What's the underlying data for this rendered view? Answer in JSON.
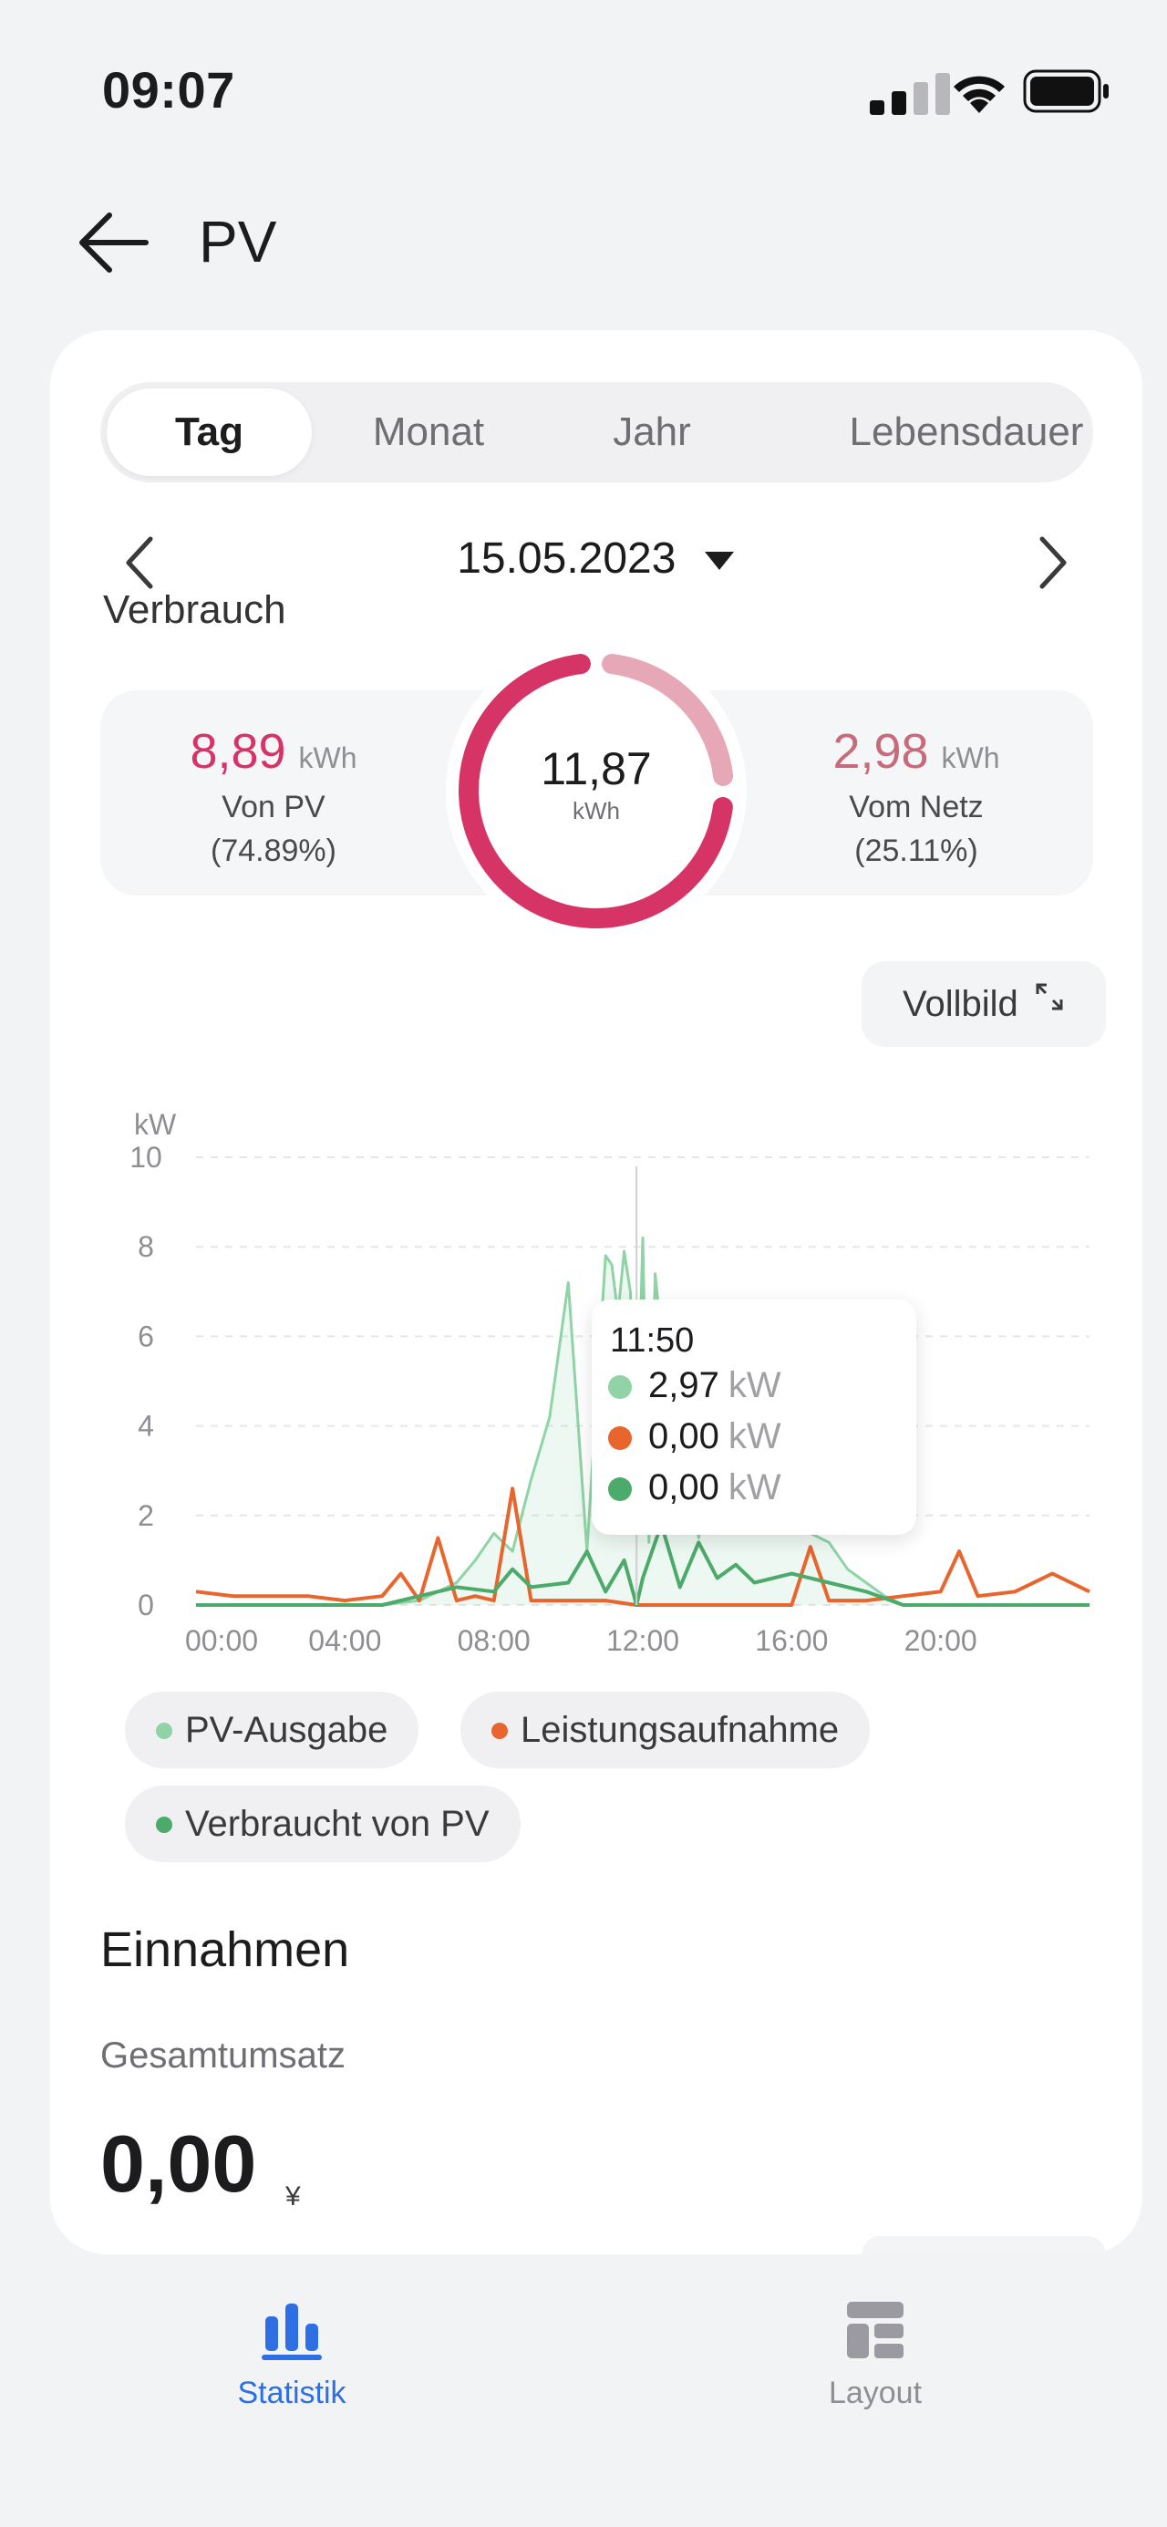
{
  "status_bar": {
    "time": "09:07"
  },
  "header": {
    "title": "PV"
  },
  "tabs": [
    {
      "label": "Tag",
      "active": true
    },
    {
      "label": "Monat",
      "active": false
    },
    {
      "label": "Jahr",
      "active": false
    },
    {
      "label": "Lebensdauer",
      "active": false
    }
  ],
  "date_nav": {
    "date": "15.05.2023"
  },
  "section_partial_label": "Verbrauch",
  "summary": {
    "left": {
      "value": "8,89",
      "unit": "kWh",
      "label": "Von PV",
      "percent": "(74.89%)"
    },
    "center": {
      "value": "11,87",
      "unit": "kWh"
    },
    "right": {
      "value": "2,98",
      "unit": "kWh",
      "label": "Vom Netz",
      "percent": "(25.11%)"
    },
    "pv_fraction": 0.7489,
    "colors": {
      "pv": "#d63366",
      "grid": "#e6a8b6"
    }
  },
  "fullscreen_label": "Vollbild",
  "chart_data": {
    "type": "line",
    "ylabel": "kW",
    "ylim": [
      0,
      10
    ],
    "y_ticks": [
      "0",
      "2",
      "4",
      "6",
      "8",
      "10"
    ],
    "x_ticks": [
      "00:00",
      "04:00",
      "08:00",
      "12:00",
      "16:00",
      "20:00"
    ],
    "series": [
      {
        "name": "PV-Ausgabe",
        "color": "#8fd3a6",
        "x": [
          "00:00",
          "05:00",
          "06:00",
          "07:00",
          "07:30",
          "08:00",
          "08:30",
          "09:00",
          "09:30",
          "10:00",
          "10:30",
          "11:00",
          "11:10",
          "11:20",
          "11:30",
          "11:40",
          "11:50",
          "12:00",
          "12:10",
          "12:20",
          "12:30",
          "12:40",
          "13:00",
          "13:30",
          "14:00",
          "14:30",
          "15:00",
          "15:30",
          "16:00",
          "16:30",
          "17:00",
          "17:30",
          "18:00",
          "18:30",
          "19:00",
          "24:00"
        ],
        "values": [
          0,
          0,
          0.1,
          0.5,
          1.0,
          1.6,
          1.2,
          2.8,
          4.2,
          7.2,
          1.2,
          7.8,
          7.6,
          6.5,
          7.9,
          7.0,
          2.97,
          8.2,
          1.4,
          7.4,
          6.0,
          2.0,
          4.2,
          1.5,
          3.2,
          1.6,
          2.6,
          1.8,
          2.4,
          1.6,
          1.4,
          0.8,
          0.5,
          0.2,
          0,
          0
        ]
      },
      {
        "name": "Leistungsaufnahme",
        "color": "#e8662e",
        "x": [
          "00:00",
          "01:00",
          "02:00",
          "03:00",
          "04:00",
          "05:00",
          "05:30",
          "06:00",
          "06:30",
          "07:00",
          "07:30",
          "08:00",
          "08:30",
          "09:00",
          "09:30",
          "10:00",
          "11:00",
          "11:50",
          "12:00",
          "13:00",
          "14:00",
          "15:00",
          "16:00",
          "16:30",
          "17:00",
          "18:00",
          "19:00",
          "20:00",
          "20:30",
          "21:00",
          "22:00",
          "23:00",
          "24:00"
        ],
        "values": [
          0.3,
          0.2,
          0.2,
          0.2,
          0.1,
          0.2,
          0.7,
          0.1,
          1.5,
          0.1,
          0.2,
          0.1,
          2.6,
          0.1,
          0.1,
          0.1,
          0.1,
          0,
          0,
          0,
          0,
          0,
          0,
          1.3,
          0.1,
          0.1,
          0.2,
          0.3,
          1.2,
          0.2,
          0.3,
          0.7,
          0.3
        ]
      },
      {
        "name": "Verbraucht von PV",
        "color": "#4caa6a",
        "x": [
          "00:00",
          "05:00",
          "06:00",
          "07:00",
          "08:00",
          "08:30",
          "09:00",
          "10:00",
          "10:30",
          "11:00",
          "11:30",
          "11:50",
          "12:00",
          "12:30",
          "13:00",
          "13:30",
          "14:00",
          "14:30",
          "15:00",
          "16:00",
          "17:00",
          "18:00",
          "19:00",
          "24:00"
        ],
        "values": [
          0,
          0,
          0.2,
          0.4,
          0.3,
          0.8,
          0.4,
          0.5,
          1.2,
          0.3,
          1.0,
          0,
          0.6,
          1.8,
          0.4,
          1.4,
          0.6,
          0.9,
          0.5,
          0.7,
          0.5,
          0.3,
          0,
          0
        ]
      }
    ],
    "cursor_x": "11:50"
  },
  "tooltip": {
    "time": "11:50",
    "rows": [
      {
        "value": "2,97",
        "unit": "kW",
        "color": "#8fd3a6"
      },
      {
        "value": "0,00",
        "unit": "kW",
        "color": "#e8662e"
      },
      {
        "value": "0,00",
        "unit": "kW",
        "color": "#4caa6a"
      }
    ]
  },
  "legend": [
    {
      "label": "PV-Ausgabe",
      "color": "#8fd3a6"
    },
    {
      "label": "Leistungsaufnahme",
      "color": "#e8662e"
    },
    {
      "label": "Verbraucht von PV",
      "color": "#4caa6a"
    }
  ],
  "income": {
    "title": "Einnahmen",
    "total_label": "Gesamtumsatz",
    "total_value": "0,00",
    "currency": "¥"
  },
  "bottom_nav": [
    {
      "label": "Statistik",
      "icon": "bar-chart-icon",
      "active": true
    },
    {
      "label": "Layout",
      "icon": "layout-icon",
      "active": false
    }
  ],
  "colors": {
    "accent": "#2f6fe4",
    "inactive": "#8e8e93"
  }
}
